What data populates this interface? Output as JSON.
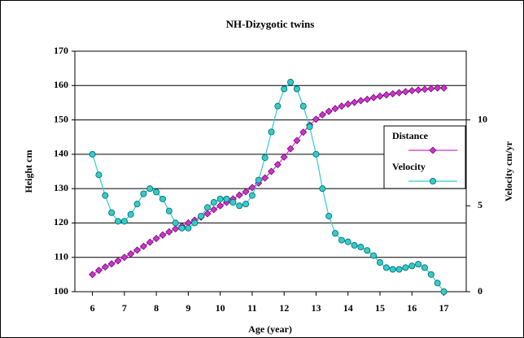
{
  "chart_data": {
    "type": "line",
    "title": "NH-Dizygotic twins",
    "xlabel": "Age (year)",
    "ylabel": "Height cm",
    "y2label": "Velocity cm/yr",
    "x": [
      6.0,
      6.2,
      6.4,
      6.6,
      6.8,
      7.0,
      7.2,
      7.4,
      7.6,
      7.8,
      8.0,
      8.2,
      8.4,
      8.6,
      8.8,
      9.0,
      9.2,
      9.4,
      9.6,
      9.8,
      10.0,
      10.2,
      10.4,
      10.6,
      10.8,
      11.0,
      11.2,
      11.4,
      11.6,
      11.8,
      12.0,
      12.2,
      12.4,
      12.6,
      12.8,
      13.0,
      13.2,
      13.4,
      13.6,
      13.8,
      14.0,
      14.2,
      14.4,
      14.6,
      14.8,
      15.0,
      15.2,
      15.4,
      15.6,
      15.8,
      16.0,
      16.2,
      16.4,
      16.6,
      16.8,
      17.0
    ],
    "series": [
      {
        "name": "Distance",
        "color": "#cc33cc",
        "marker": "diamond",
        "values": [
          105,
          106.2,
          107.2,
          108.1,
          109,
          110,
          111,
          112.1,
          113.2,
          114.4,
          115.5,
          116.5,
          117.4,
          118.3,
          119.1,
          120,
          120.8,
          121.7,
          122.7,
          123.9,
          125,
          126,
          127,
          128.1,
          129.1,
          130.3,
          131.6,
          133.1,
          135,
          137,
          139.2,
          141.6,
          144,
          146.4,
          148.5,
          150.2,
          151.5,
          152.5,
          153.3,
          154,
          154.6,
          155.1,
          155.6,
          156,
          156.5,
          156.9,
          157.3,
          157.6,
          157.9,
          158.2,
          158.5,
          158.7,
          158.9,
          159.1,
          159.3,
          159.3
        ]
      },
      {
        "name": "Velocity",
        "color": "#33cccc",
        "marker": "circle",
        "axis": "y2",
        "values": [
          8,
          6.8,
          5.6,
          4.6,
          4.1,
          4.1,
          4.5,
          5.1,
          5.7,
          6.0,
          5.8,
          5.4,
          4.7,
          4.0,
          3.7,
          3.7,
          4.0,
          4.4,
          4.9,
          5.2,
          5.4,
          5.4,
          5.2,
          5.0,
          5.1,
          5.6,
          6.5,
          7.8,
          9.3,
          10.8,
          11.8,
          12.2,
          11.8,
          10.8,
          9.6,
          8.0,
          6.0,
          4.4,
          3.4,
          3.0,
          2.9,
          2.7,
          2.6,
          2.4,
          2.1,
          1.7,
          1.4,
          1.3,
          1.3,
          1.4,
          1.5,
          1.6,
          1.4,
          1.0,
          0.5,
          0
        ]
      }
    ],
    "xlim": [
      5.45,
      17.7
    ],
    "xticks": [
      6,
      7,
      8,
      9,
      10,
      11,
      12,
      13,
      14,
      15,
      16,
      17
    ],
    "ylim": [
      100,
      170
    ],
    "yticks": [
      100,
      110,
      120,
      130,
      140,
      150,
      160,
      170
    ],
    "y2lim": [
      0,
      14
    ],
    "y2ticks": [
      0,
      5,
      10
    ],
    "grid": true,
    "legend": "right"
  }
}
